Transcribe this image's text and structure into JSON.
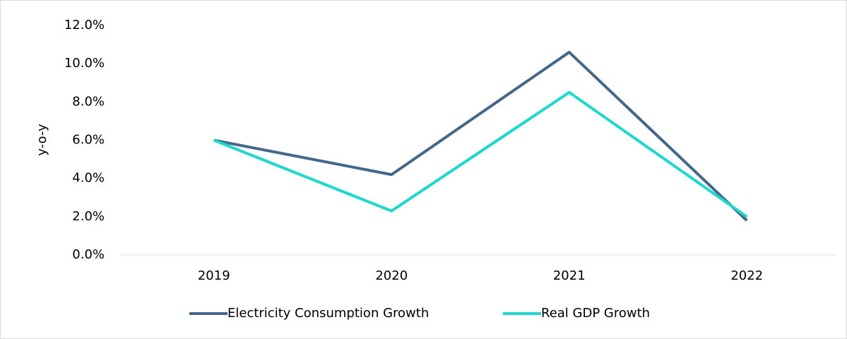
{
  "chart_data": {
    "type": "line",
    "y_label": "y-o-y",
    "categories": [
      "2019",
      "2020",
      "2021",
      "2022"
    ],
    "series": [
      {
        "name": "Electricity Consumption Growth",
        "color": "#44678a",
        "values": [
          6.0,
          4.2,
          10.6,
          1.8
        ]
      },
      {
        "name": "Real GDP Growth",
        "color": "#1ed8cc",
        "values": [
          6.0,
          2.3,
          8.5,
          2.0
        ]
      }
    ],
    "ylim": [
      0,
      12
    ],
    "yticks": [
      {
        "value": 0,
        "label": "0.0%"
      },
      {
        "value": 2,
        "label": "2.0%"
      },
      {
        "value": 4,
        "label": "4.0%"
      },
      {
        "value": 6,
        "label": "6.0%"
      },
      {
        "value": 8,
        "label": "8.0%"
      },
      {
        "value": 10,
        "label": "10.0%"
      },
      {
        "value": 12,
        "label": "12.0%"
      }
    ],
    "legend": "bottom"
  }
}
